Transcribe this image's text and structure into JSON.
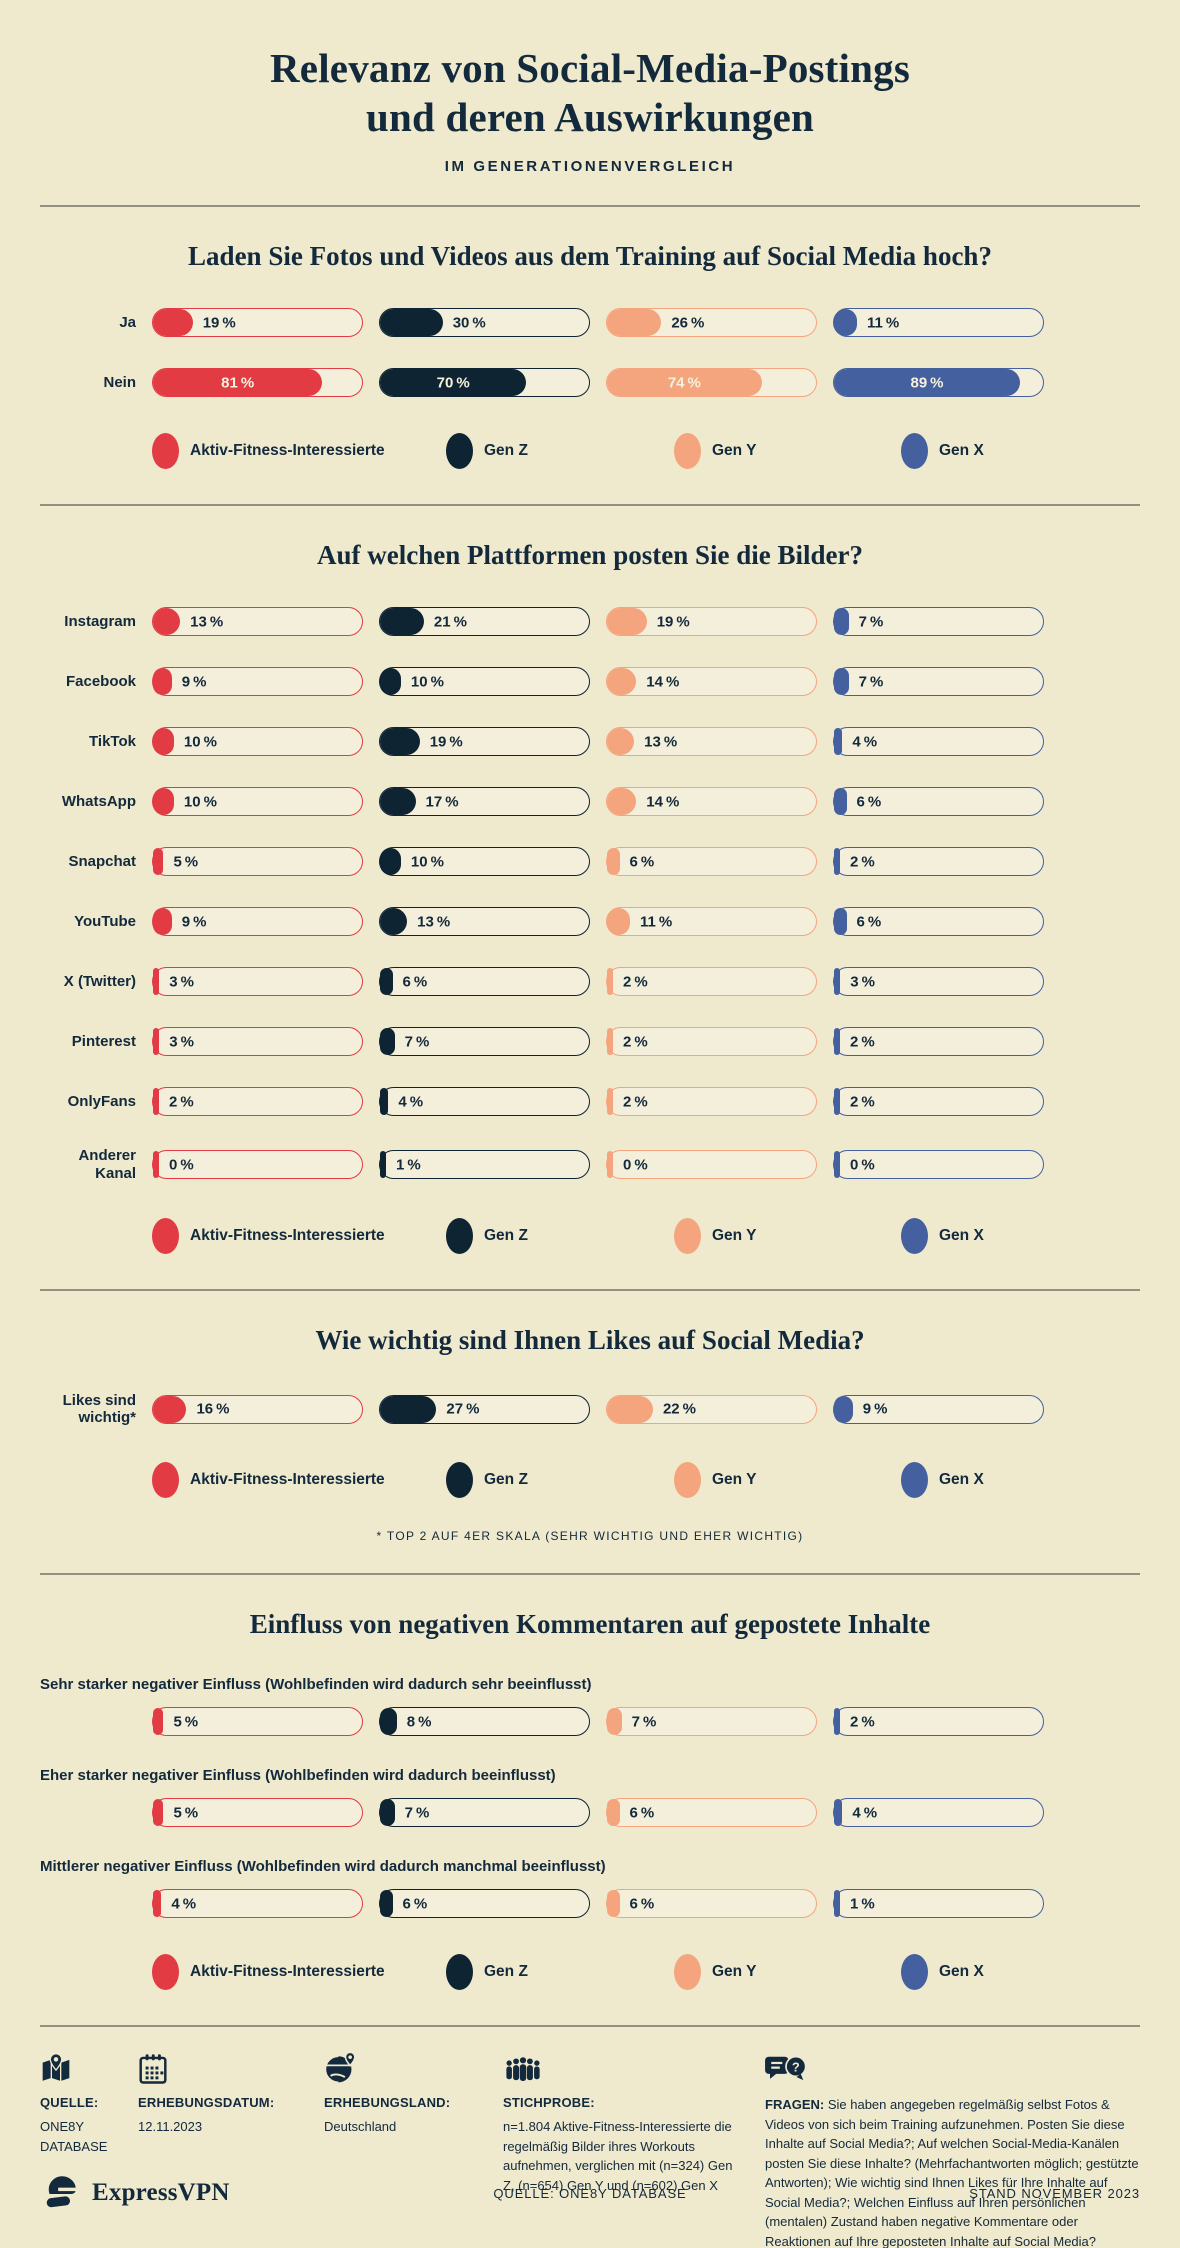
{
  "page": {
    "title_line1": "Relevanz von Social-Media-Postings",
    "title_line2": "und deren Auswirkungen",
    "subtitle": "IM GENERATIONENVERGLEICH"
  },
  "colors": {
    "background": "#EFE9CE",
    "bar_track": "#F4EFDB",
    "ink": "#13293C",
    "divider": "#8F9082",
    "label_on_fill": "#F6F1DC"
  },
  "series": [
    {
      "name": "Aktiv-Fitness-Interessierte",
      "color": "#E23B44"
    },
    {
      "name": "Gen Z",
      "color": "#0F2433"
    },
    {
      "name": "Gen Y",
      "color": "#F5A57E"
    },
    {
      "name": "Gen X",
      "color": "#44609F"
    }
  ],
  "chart_data": [
    {
      "type": "bar",
      "title": "Laden Sie Fotos und Videos aus dem Training auf Social Media hoch?",
      "unit": "%",
      "xlim": [
        0,
        100
      ],
      "labels_position": "left",
      "categories": [
        "Ja",
        "Nein"
      ],
      "series": [
        {
          "name": "Aktiv-Fitness-Interessierte",
          "values": [
            19,
            81
          ]
        },
        {
          "name": "Gen Z",
          "values": [
            30,
            70
          ]
        },
        {
          "name": "Gen Y",
          "values": [
            26,
            74
          ]
        },
        {
          "name": "Gen X",
          "values": [
            11,
            89
          ]
        }
      ]
    },
    {
      "type": "bar",
      "title": "Auf welchen Plattformen posten Sie die Bilder?",
      "unit": "%",
      "xlim": [
        0,
        100
      ],
      "labels_position": "left",
      "categories": [
        "Instagram",
        "Facebook",
        "TikTok",
        "WhatsApp",
        "Snapchat",
        "YouTube",
        "X (Twitter)",
        "Pinterest",
        "OnlyFans",
        "Anderer Kanal"
      ],
      "series": [
        {
          "name": "Aktiv-Fitness-Interessierte",
          "values": [
            13,
            9,
            10,
            10,
            5,
            9,
            3,
            3,
            2,
            0
          ]
        },
        {
          "name": "Gen Z",
          "values": [
            21,
            10,
            19,
            17,
            10,
            13,
            6,
            7,
            4,
            1
          ]
        },
        {
          "name": "Gen Y",
          "values": [
            19,
            14,
            13,
            14,
            6,
            11,
            2,
            2,
            2,
            0
          ]
        },
        {
          "name": "Gen X",
          "values": [
            7,
            7,
            4,
            6,
            2,
            6,
            3,
            2,
            2,
            0
          ]
        }
      ]
    },
    {
      "type": "bar",
      "title": "Wie wichtig sind Ihnen Likes auf Social Media?",
      "unit": "%",
      "xlim": [
        0,
        100
      ],
      "labels_position": "left",
      "categories": [
        "Likes sind wichtig*"
      ],
      "series": [
        {
          "name": "Aktiv-Fitness-Interessierte",
          "values": [
            16
          ]
        },
        {
          "name": "Gen Z",
          "values": [
            27
          ]
        },
        {
          "name": "Gen Y",
          "values": [
            22
          ]
        },
        {
          "name": "Gen X",
          "values": [
            9
          ]
        }
      ],
      "footnote": "* TOP 2 AUF 4ER SKALA (SEHR WICHTIG UND EHER WICHTIG)"
    },
    {
      "type": "bar",
      "title": "Einfluss von negativen Kommentaren auf gepostete Inhalte",
      "unit": "%",
      "xlim": [
        0,
        100
      ],
      "labels_position": "above",
      "categories": [
        "Sehr starker negativer Einfluss (Wohlbefinden wird dadurch sehr beeinflusst)",
        "Eher starker negativer Einfluss (Wohlbefinden wird dadurch beeinflusst)",
        "Mittlerer negativer Einfluss (Wohlbefinden wird dadurch manchmal beeinflusst)"
      ],
      "series": [
        {
          "name": "Aktiv-Fitness-Interessierte",
          "values": [
            5,
            5,
            4
          ]
        },
        {
          "name": "Gen Z",
          "values": [
            8,
            7,
            6
          ]
        },
        {
          "name": "Gen Y",
          "values": [
            7,
            6,
            6
          ]
        },
        {
          "name": "Gen X",
          "values": [
            2,
            4,
            1
          ]
        }
      ]
    }
  ],
  "footer": {
    "quelle": {
      "label": "QUELLE:",
      "body": "ONE8Y DATABASE"
    },
    "erhebungsdatum": {
      "label": "ERHEBUNGSDATUM:",
      "body": "12.11.2023"
    },
    "erhebungsland": {
      "label": "ERHEBUNGSLAND:",
      "body": "Deutschland"
    },
    "stichprobe": {
      "label": "STICHPROBE:",
      "body": "n=1.804 Aktive-Fitness-Interessierte die regelmäßig Bilder ihres Workouts aufnehmen, verglichen mit (n=324) Gen Z, (n=654) Gen Y und (n=602) Gen X"
    },
    "fragen": {
      "label": "FRAGEN:",
      "body": "Sie haben angegeben regelmäßig selbst Fotos & Videos von sich beim Training aufzunehmen. Posten Sie diese Inhalte auf Social Media?; Auf welchen Social-Media-Kanälen posten Sie diese Inhalte? (Mehrfachantworten möglich; gestützte Antworten); Wie wichtig sind Ihnen Likes für Ihre Inhalte auf Social Media?; Welchen Einfluss auf Ihren persönlichen (mentalen) Zustand haben negative Kommentare oder Reaktionen auf Ihre geposteten Inhalte auf Social Media?"
    }
  },
  "bottom_bar": {
    "brand": "ExpressVPN",
    "source": "QUELLE: ONE8Y DATABASE",
    "stand": "STAND NOVEMBER 2023"
  }
}
